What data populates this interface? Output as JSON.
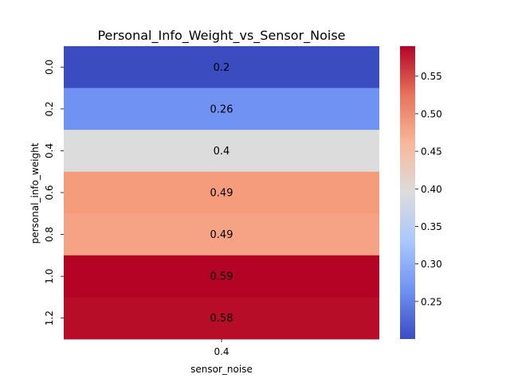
{
  "chart_data": {
    "type": "heatmap",
    "title": "Personal_Info_Weight_vs_Sensor_Noise",
    "xlabel": "sensor_noise",
    "ylabel": "personal_info_weight",
    "x_categories": [
      "0.4"
    ],
    "y_categories": [
      "0.0",
      "0.2",
      "0.4",
      "0.6",
      "0.8",
      "1.0",
      "1.2"
    ],
    "values": [
      [
        0.2
      ],
      [
        0.26
      ],
      [
        0.4
      ],
      [
        0.49
      ],
      [
        0.49
      ],
      [
        0.59
      ],
      [
        0.58
      ]
    ],
    "cell_labels": [
      "0.2",
      "0.26",
      "0.4",
      "0.49",
      "0.49",
      "0.59",
      "0.58"
    ],
    "cell_colors": [
      "#3b4cc0",
      "#6f92f3",
      "#dddcdc",
      "#f59c7d",
      "#f6a385",
      "#b40426",
      "#b70d28"
    ],
    "cell_label_colors": [
      "#ffffff",
      "#ffffff",
      "#262626",
      "#ffffff",
      "#ffffff",
      "#ffffff",
      "#ffffff"
    ],
    "colormap": "coolwarm",
    "colorbar": {
      "range": [
        0.2,
        0.59
      ],
      "ticks": [
        0.25,
        0.3,
        0.35,
        0.4,
        0.45,
        0.5,
        0.55
      ],
      "tick_labels": [
        "0.25",
        "0.30",
        "0.35",
        "0.40",
        "0.45",
        "0.50",
        "0.55"
      ],
      "stops": [
        "#3b4cc0",
        "#6f92f3",
        "#aac7fd",
        "#dddcdc",
        "#f7b89c",
        "#e7745b",
        "#b40426"
      ]
    }
  }
}
